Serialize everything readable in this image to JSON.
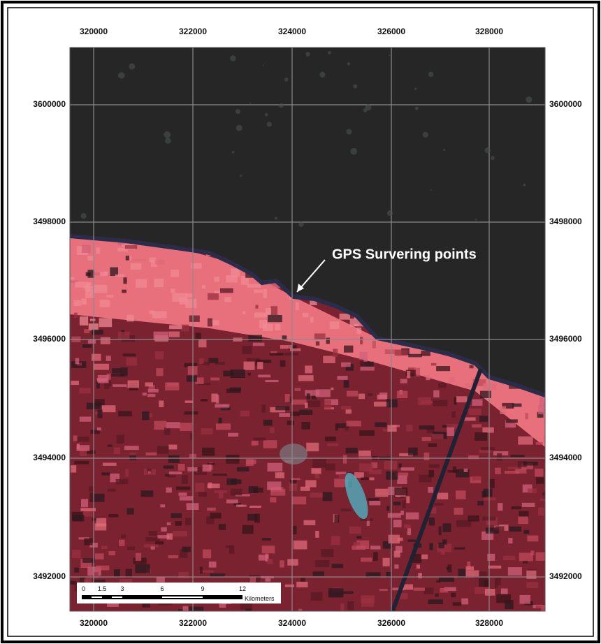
{
  "map": {
    "x_labels": [
      "320000",
      "322000",
      "324000",
      "326000",
      "328000"
    ],
    "y_labels": [
      "3600000",
      "3498000",
      "3496000",
      "3494000",
      "3492000"
    ],
    "annotation": "GPS Survering points",
    "scale_bar": {
      "labels": [
        "0",
        "1.5",
        "3",
        "6",
        "9",
        "12"
      ],
      "unit": "Kilometers"
    }
  }
}
